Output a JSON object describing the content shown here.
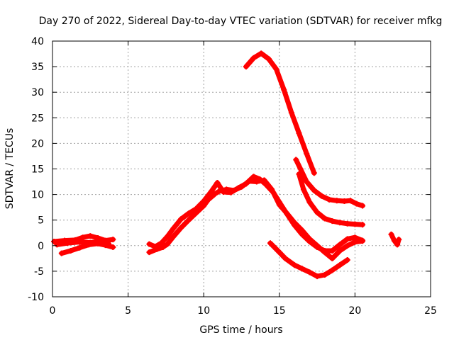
{
  "chart_data": {
    "type": "scatter",
    "title": "Day 270 of 2022, Sidereal Day-to-day VTEC variation (SDTVAR) for receiver mfkg",
    "xlabel": "GPS time / hours",
    "ylabel": "SDTVAR / TECUs",
    "xlim": [
      0,
      25
    ],
    "ylim": [
      -10,
      40
    ],
    "xticks": [
      0,
      5,
      10,
      15,
      20,
      25
    ],
    "yticks": [
      -10,
      -5,
      0,
      5,
      10,
      15,
      20,
      25,
      30,
      35,
      40
    ],
    "grid": true,
    "legend": "none",
    "series_color": "#ff0000",
    "series": [
      {
        "name": "track-01",
        "points": [
          [
            0.1,
            0.8
          ],
          [
            0.8,
            1.0
          ],
          [
            1.5,
            1.1
          ],
          [
            2.0,
            1.6
          ],
          [
            2.5,
            1.9
          ],
          [
            3.0,
            1.5
          ],
          [
            3.5,
            1.0
          ],
          [
            4.0,
            1.2
          ]
        ]
      },
      {
        "name": "track-02",
        "points": [
          [
            0.6,
            -1.5
          ],
          [
            1.2,
            -1.0
          ],
          [
            1.8,
            -0.4
          ],
          [
            2.4,
            0.2
          ],
          [
            3.0,
            0.4
          ],
          [
            3.5,
            0.1
          ],
          [
            4.0,
            -0.3
          ]
        ]
      },
      {
        "name": "track-03",
        "points": [
          [
            0.3,
            0.2
          ],
          [
            1.0,
            0.5
          ],
          [
            1.8,
            0.7
          ],
          [
            2.5,
            0.6
          ],
          [
            3.1,
            0.8
          ],
          [
            3.7,
            0.4
          ]
        ]
      },
      {
        "name": "track-04",
        "points": [
          [
            6.4,
            -1.3
          ],
          [
            6.9,
            -0.7
          ],
          [
            7.3,
            -0.3
          ],
          [
            7.6,
            0.3
          ],
          [
            8.0,
            1.8
          ],
          [
            8.5,
            3.5
          ],
          [
            9.0,
            5.0
          ],
          [
            9.5,
            6.4
          ],
          [
            10.0,
            7.8
          ],
          [
            10.3,
            9.0
          ],
          [
            10.7,
            10.0
          ]
        ]
      },
      {
        "name": "track-05",
        "points": [
          [
            6.4,
            0.3
          ],
          [
            6.8,
            -0.2
          ],
          [
            7.2,
            0.5
          ],
          [
            7.6,
            1.8
          ],
          [
            8.0,
            3.4
          ],
          [
            8.5,
            5.2
          ],
          [
            9.0,
            6.3
          ],
          [
            9.5,
            7.2
          ],
          [
            10.0,
            8.7
          ],
          [
            10.5,
            10.6
          ],
          [
            10.9,
            12.3
          ],
          [
            11.3,
            10.5
          ],
          [
            11.8,
            10.4
          ],
          [
            12.3,
            11.3
          ],
          [
            12.8,
            12.1
          ],
          [
            13.3,
            13.5
          ],
          [
            13.7,
            13.0
          ],
          [
            14.1,
            12.0
          ],
          [
            14.6,
            10.4
          ],
          [
            15.0,
            8.5
          ],
          [
            15.5,
            6.2
          ],
          [
            16.0,
            4.0
          ],
          [
            16.5,
            2.2
          ],
          [
            17.0,
            0.8
          ],
          [
            17.5,
            -0.3
          ],
          [
            18.0,
            -1.0
          ],
          [
            18.5,
            -1.0
          ],
          [
            19.0,
            0.2
          ],
          [
            19.5,
            1.3
          ],
          [
            20.0,
            1.6
          ],
          [
            20.5,
            1.0
          ]
        ]
      },
      {
        "name": "track-06",
        "points": [
          [
            10.0,
            8.5
          ],
          [
            10.5,
            9.7
          ],
          [
            11.0,
            10.6
          ],
          [
            11.5,
            11.0
          ],
          [
            12.0,
            10.8
          ],
          [
            12.5,
            11.5
          ],
          [
            13.0,
            12.6
          ],
          [
            13.5,
            12.5
          ],
          [
            14.0,
            12.8
          ],
          [
            14.5,
            11.0
          ],
          [
            15.0,
            8.0
          ],
          [
            15.5,
            6.3
          ],
          [
            16.0,
            4.5
          ],
          [
            16.5,
            3.0
          ],
          [
            17.0,
            1.3
          ],
          [
            17.5,
            0.0
          ],
          [
            18.0,
            -1.3
          ],
          [
            18.5,
            -2.5
          ],
          [
            19.0,
            -1.0
          ],
          [
            19.5,
            0.0
          ],
          [
            20.0,
            0.7
          ],
          [
            20.5,
            0.9
          ]
        ]
      },
      {
        "name": "track-07",
        "points": [
          [
            12.8,
            35.0
          ],
          [
            13.3,
            36.7
          ],
          [
            13.8,
            37.6
          ],
          [
            14.3,
            36.5
          ],
          [
            14.8,
            34.5
          ],
          [
            15.3,
            30.5
          ],
          [
            15.8,
            26.0
          ],
          [
            16.3,
            22.0
          ],
          [
            16.8,
            18.0
          ],
          [
            17.3,
            14.2
          ]
        ]
      },
      {
        "name": "track-08",
        "points": [
          [
            16.1,
            16.8
          ],
          [
            16.4,
            15.0
          ],
          [
            16.8,
            12.5
          ],
          [
            17.3,
            10.8
          ],
          [
            17.8,
            9.7
          ],
          [
            18.3,
            9.0
          ],
          [
            18.8,
            8.8
          ],
          [
            19.3,
            8.7
          ],
          [
            19.7,
            8.8
          ],
          [
            20.1,
            8.2
          ],
          [
            20.5,
            7.8
          ]
        ]
      },
      {
        "name": "track-09",
        "points": [
          [
            16.3,
            14.0
          ],
          [
            16.6,
            11.0
          ],
          [
            17.0,
            8.5
          ],
          [
            17.5,
            6.5
          ],
          [
            18.0,
            5.3
          ],
          [
            18.5,
            4.8
          ],
          [
            19.0,
            4.5
          ],
          [
            19.5,
            4.3
          ],
          [
            20.0,
            4.2
          ],
          [
            20.5,
            4.1
          ]
        ]
      },
      {
        "name": "track-10",
        "points": [
          [
            14.4,
            0.5
          ],
          [
            14.9,
            -1.0
          ],
          [
            15.4,
            -2.5
          ],
          [
            16.0,
            -3.8
          ],
          [
            16.5,
            -4.5
          ],
          [
            17.0,
            -5.2
          ],
          [
            17.5,
            -6.0
          ],
          [
            18.0,
            -5.7
          ],
          [
            18.5,
            -4.8
          ],
          [
            19.0,
            -3.8
          ],
          [
            19.5,
            -2.8
          ]
        ]
      },
      {
        "name": "track-11",
        "points": [
          [
            22.4,
            2.2
          ],
          [
            22.6,
            1.0
          ],
          [
            22.8,
            0.2
          ],
          [
            22.9,
            1.2
          ]
        ]
      }
    ]
  }
}
